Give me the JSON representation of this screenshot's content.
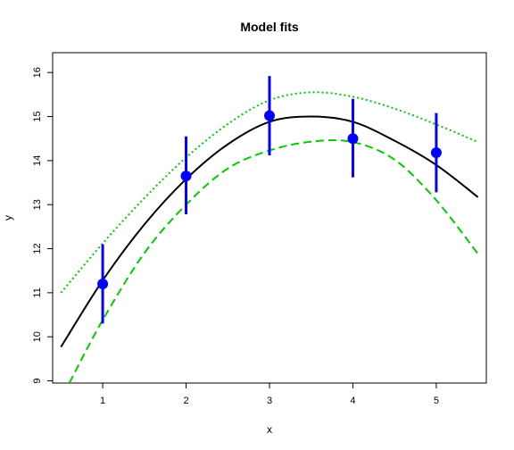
{
  "chart_data": {
    "type": "scatter",
    "title": "Model fits",
    "xlabel": "x",
    "ylabel": "y",
    "xlim": [
      0.4,
      5.6
    ],
    "ylim": [
      8.95,
      16.45
    ],
    "xticks": [
      1,
      2,
      3,
      4,
      5
    ],
    "yticks": [
      9,
      10,
      11,
      12,
      13,
      14,
      15,
      16
    ],
    "grid": false,
    "legend": "none",
    "points": {
      "color": "#0000ff",
      "x": [
        1,
        2,
        3,
        4,
        5
      ],
      "y": [
        11.2,
        13.65,
        15.02,
        14.5,
        14.18
      ],
      "err_low": [
        10.3,
        12.78,
        14.12,
        13.62,
        13.28
      ],
      "err_high": [
        12.1,
        14.55,
        15.92,
        15.4,
        15.08
      ]
    },
    "curves": [
      {
        "style": "solid",
        "color": "#000000",
        "x": [
          0.5,
          1.0,
          1.5,
          2.0,
          2.5,
          3.0,
          3.5,
          4.0,
          4.5,
          5.0,
          5.5
        ],
        "y": [
          9.77,
          11.28,
          12.55,
          13.58,
          14.37,
          14.88,
          15.0,
          14.88,
          14.45,
          13.9,
          13.17
        ]
      },
      {
        "style": "dotted",
        "color": "#00cc00",
        "x": [
          0.5,
          1.0,
          1.5,
          2.0,
          2.5,
          3.0,
          3.5,
          4.0,
          4.5,
          5.0,
          5.5
        ],
        "y": [
          11.0,
          12.12,
          13.15,
          14.07,
          14.83,
          15.37,
          15.55,
          15.45,
          15.18,
          14.82,
          14.42
        ]
      },
      {
        "style": "dashed",
        "color": "#00cc00",
        "x": [
          0.6,
          1.0,
          1.5,
          2.0,
          2.5,
          3.0,
          3.5,
          4.0,
          4.5,
          5.0,
          5.5
        ],
        "y": [
          8.95,
          10.38,
          11.9,
          13.0,
          13.82,
          14.23,
          14.43,
          14.42,
          14.02,
          13.1,
          11.88
        ]
      }
    ]
  }
}
